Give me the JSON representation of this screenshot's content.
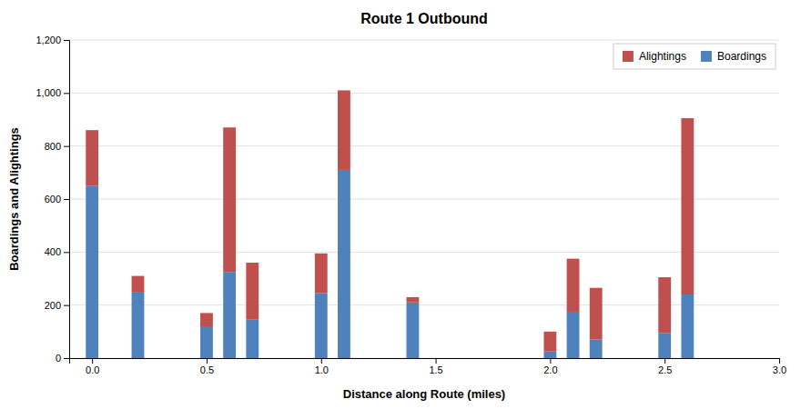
{
  "chart_data": {
    "type": "bar",
    "title": "Route 1 Outbound",
    "xlabel": "Distance along Route (miles)",
    "ylabel": "Boardings and Alightings",
    "stacked": true,
    "grid": true,
    "legend": "upper right",
    "x": [
      0.0,
      0.2,
      0.5,
      0.6,
      0.7,
      1.0,
      1.1,
      1.4,
      2.0,
      2.1,
      2.2,
      2.5,
      2.6
    ],
    "series": [
      {
        "name": "Boardings",
        "color": "#4F81BD",
        "values": [
          650,
          250,
          120,
          325,
          145,
          245,
          710,
          210,
          25,
          175,
          70,
          95,
          240
        ]
      },
      {
        "name": "Alightings",
        "color": "#C0504D",
        "values": [
          210,
          60,
          50,
          545,
          215,
          150,
          300,
          20,
          75,
          200,
          195,
          210,
          665
        ]
      }
    ],
    "xlim": [
      -0.1,
      3.0
    ],
    "xticks": [
      {
        "value": 0.0,
        "label": "0.0"
      },
      {
        "value": 0.5,
        "label": "0.5"
      },
      {
        "value": 1.0,
        "label": "1.0"
      },
      {
        "value": 1.5,
        "label": "1.5"
      },
      {
        "value": 2.0,
        "label": "2.0"
      },
      {
        "value": 2.5,
        "label": "2.5"
      },
      {
        "value": 3.0,
        "label": "3.0"
      }
    ],
    "ylim": [
      0,
      1200
    ],
    "yticks": [
      0,
      200,
      400,
      600,
      800,
      {
        "value": 1000,
        "label": "1,000"
      },
      {
        "value": 1200,
        "label": "1,200"
      }
    ]
  }
}
